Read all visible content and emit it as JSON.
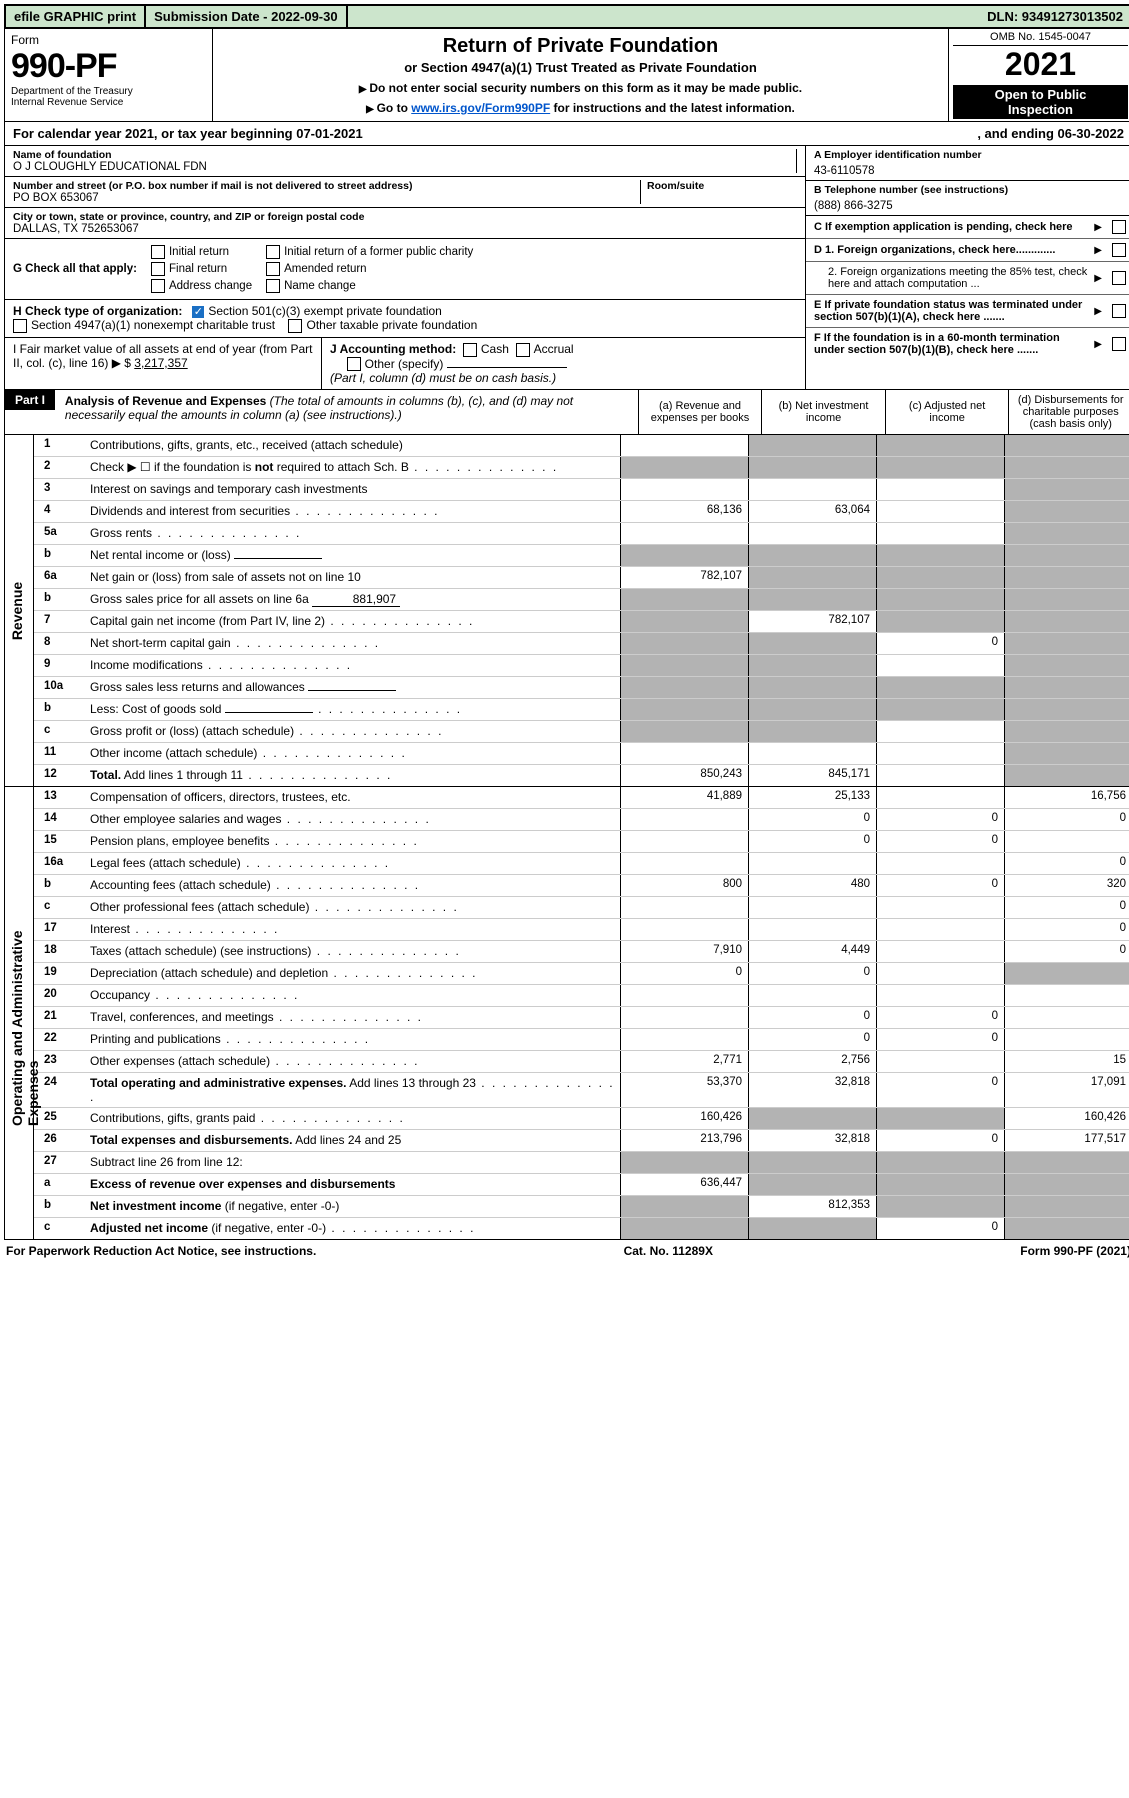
{
  "topbar": {
    "efile": "efile GRAPHIC print",
    "submission_label": "Submission Date - 2022-09-30",
    "dln": "DLN: 93491273013502"
  },
  "form_header": {
    "form_word": "Form",
    "form_number": "990-PF",
    "dept": "Department of the Treasury",
    "irs": "Internal Revenue Service",
    "title": "Return of Private Foundation",
    "subtitle": "or Section 4947(a)(1) Trust Treated as Private Foundation",
    "note1": "Do not enter social security numbers on this form as it may be made public.",
    "note2_pre": "Go to ",
    "note2_link": "www.irs.gov/Form990PF",
    "note2_post": " for instructions and the latest information.",
    "omb": "OMB No. 1545-0047",
    "year": "2021",
    "open1": "Open to Public",
    "open2": "Inspection"
  },
  "tax_year": {
    "left": "For calendar year 2021, or tax year beginning 07-01-2021",
    "right": ", and ending 06-30-2022"
  },
  "entity": {
    "name_label": "Name of foundation",
    "name": "O J CLOUGHLY EDUCATIONAL FDN",
    "addr_label": "Number and street (or P.O. box number if mail is not delivered to street address)",
    "addr": "PO BOX 653067",
    "room_label": "Room/suite",
    "city_label": "City or town, state or province, country, and ZIP or foreign postal code",
    "city": "DALLAS, TX  752653067",
    "ein_label": "A Employer identification number",
    "ein": "43-6110578",
    "phone_label": "B Telephone number (see instructions)",
    "phone": "(888) 866-3275",
    "c_label": "C If exemption application is pending, check here"
  },
  "check_G": {
    "label": "G Check all that apply:",
    "opts": [
      "Initial return",
      "Final return",
      "Address change",
      "Initial return of a former public charity",
      "Amended return",
      "Name change"
    ]
  },
  "check_H": {
    "label": "H Check type of organization:",
    "opt1": "Section 501(c)(3) exempt private foundation",
    "opt2": "Section 4947(a)(1) nonexempt charitable trust",
    "opt3": "Other taxable private foundation"
  },
  "check_I": {
    "label": "I Fair market value of all assets at end of year (from Part II, col. (c), line 16)",
    "amount": "3,217,357"
  },
  "check_J": {
    "label": "J Accounting method:",
    "cash": "Cash",
    "accrual": "Accrual",
    "other": "Other (specify)",
    "note": "(Part I, column (d) must be on cash basis.)"
  },
  "right_flags": {
    "d1": "D 1. Foreign organizations, check here.............",
    "d2": "2. Foreign organizations meeting the 85% test, check here and attach computation ...",
    "e": "E  If private foundation status was terminated under section 507(b)(1)(A), check here .......",
    "f": "F  If the foundation is in a 60-month termination under section 507(b)(1)(B), check here ......."
  },
  "part1": {
    "badge": "Part I",
    "title": "Analysis of Revenue and Expenses",
    "paren": " (The total of amounts in columns (b), (c), and (d) may not necessarily equal the amounts in column (a) (see instructions).)",
    "cols": {
      "a": "(a)  Revenue and expenses per books",
      "b": "(b)  Net investment income",
      "c": "(c)  Adjusted net income",
      "d": "(d)  Disbursements for charitable purposes (cash basis only)"
    }
  },
  "vlabels": {
    "rev": "Revenue",
    "exp": "Operating and Administrative Expenses"
  },
  "lines": [
    {
      "n": "1",
      "d": "Contributions, gifts, grants, etc., received (attach schedule)",
      "a": "",
      "b": "s",
      "c": "s",
      "x": "s"
    },
    {
      "n": "2",
      "d": "Check ▶ ☐ if the foundation is <b>not</b> required to attach Sch. B",
      "dot": true,
      "a": "s",
      "b": "s",
      "c": "s",
      "x": "s"
    },
    {
      "n": "3",
      "d": "Interest on savings and temporary cash investments",
      "a": "",
      "b": "",
      "c": "",
      "x": "s"
    },
    {
      "n": "4",
      "d": "Dividends and interest from securities",
      "dot": true,
      "a": "68,136",
      "b": "63,064",
      "c": "",
      "x": "s"
    },
    {
      "n": "5a",
      "d": "Gross rents",
      "dot": true,
      "a": "",
      "b": "",
      "c": "",
      "x": "s"
    },
    {
      "n": "b",
      "d": "Net rental income or (loss)",
      "inline": true,
      "a": "s",
      "b": "s",
      "c": "s",
      "x": "s"
    },
    {
      "n": "6a",
      "d": "Net gain or (loss) from sale of assets not on line 10",
      "a": "782,107",
      "b": "s",
      "c": "s",
      "x": "s"
    },
    {
      "n": "b",
      "d": "Gross sales price for all assets on line 6a",
      "inline_val": "881,907",
      "a": "s",
      "b": "s",
      "c": "s",
      "x": "s"
    },
    {
      "n": "7",
      "d": "Capital gain net income (from Part IV, line 2)",
      "dot": true,
      "a": "s",
      "b": "782,107",
      "c": "s",
      "x": "s"
    },
    {
      "n": "8",
      "d": "Net short-term capital gain",
      "dot": true,
      "a": "s",
      "b": "s",
      "c": "0",
      "x": "s"
    },
    {
      "n": "9",
      "d": "Income modifications",
      "dot": true,
      "a": "s",
      "b": "s",
      "c": "",
      "x": "s"
    },
    {
      "n": "10a",
      "d": "Gross sales less returns and allowances",
      "inline": true,
      "a": "s",
      "b": "s",
      "c": "s",
      "x": "s"
    },
    {
      "n": "b",
      "d": "Less: Cost of goods sold",
      "dot": true,
      "inline": true,
      "a": "s",
      "b": "s",
      "c": "s",
      "x": "s"
    },
    {
      "n": "c",
      "d": "Gross profit or (loss) (attach schedule)",
      "dot": true,
      "a": "s",
      "b": "s",
      "c": "",
      "x": "s"
    },
    {
      "n": "11",
      "d": "Other income (attach schedule)",
      "dot": true,
      "a": "",
      "b": "",
      "c": "",
      "x": "s"
    },
    {
      "n": "12",
      "d": "<b>Total.</b> Add lines 1 through 11",
      "dot": true,
      "a": "850,243",
      "b": "845,171",
      "c": "",
      "x": "s"
    }
  ],
  "exp_lines": [
    {
      "n": "13",
      "d": "Compensation of officers, directors, trustees, etc.",
      "a": "41,889",
      "b": "25,133",
      "c": "",
      "x": "16,756"
    },
    {
      "n": "14",
      "d": "Other employee salaries and wages",
      "dot": true,
      "a": "",
      "b": "0",
      "c": "0",
      "x": "0"
    },
    {
      "n": "15",
      "d": "Pension plans, employee benefits",
      "dot": true,
      "a": "",
      "b": "0",
      "c": "0",
      "x": ""
    },
    {
      "n": "16a",
      "d": "Legal fees (attach schedule)",
      "dot": true,
      "a": "",
      "b": "",
      "c": "",
      "x": "0"
    },
    {
      "n": "b",
      "d": "Accounting fees (attach schedule)",
      "dot": true,
      "a": "800",
      "b": "480",
      "c": "0",
      "x": "320"
    },
    {
      "n": "c",
      "d": "Other professional fees (attach schedule)",
      "dot": true,
      "a": "",
      "b": "",
      "c": "",
      "x": "0"
    },
    {
      "n": "17",
      "d": "Interest",
      "dot": true,
      "a": "",
      "b": "",
      "c": "",
      "x": "0"
    },
    {
      "n": "18",
      "d": "Taxes (attach schedule) (see instructions)",
      "dot": true,
      "a": "7,910",
      "b": "4,449",
      "c": "",
      "x": "0"
    },
    {
      "n": "19",
      "d": "Depreciation (attach schedule) and depletion",
      "dot": true,
      "a": "0",
      "b": "0",
      "c": "",
      "x": "s"
    },
    {
      "n": "20",
      "d": "Occupancy",
      "dot": true,
      "a": "",
      "b": "",
      "c": "",
      "x": ""
    },
    {
      "n": "21",
      "d": "Travel, conferences, and meetings",
      "dot": true,
      "a": "",
      "b": "0",
      "c": "0",
      "x": ""
    },
    {
      "n": "22",
      "d": "Printing and publications",
      "dot": true,
      "a": "",
      "b": "0",
      "c": "0",
      "x": ""
    },
    {
      "n": "23",
      "d": "Other expenses (attach schedule)",
      "dot": true,
      "a": "2,771",
      "b": "2,756",
      "c": "",
      "x": "15"
    },
    {
      "n": "24",
      "d": "<b>Total operating and administrative expenses.</b> Add lines 13 through 23",
      "dot": true,
      "a": "53,370",
      "b": "32,818",
      "c": "0",
      "x": "17,091"
    },
    {
      "n": "25",
      "d": "Contributions, gifts, grants paid",
      "dot": true,
      "a": "160,426",
      "b": "s",
      "c": "s",
      "x": "160,426"
    },
    {
      "n": "26",
      "d": "<b>Total expenses and disbursements.</b> Add lines 24 and 25",
      "a": "213,796",
      "b": "32,818",
      "c": "0",
      "x": "177,517"
    },
    {
      "n": "27",
      "d": "Subtract line 26 from line 12:",
      "a": "s",
      "b": "s",
      "c": "s",
      "x": "s"
    },
    {
      "n": "a",
      "d": "<b>Excess of revenue over expenses and disbursements</b>",
      "a": "636,447",
      "b": "s",
      "c": "s",
      "x": "s"
    },
    {
      "n": "b",
      "d": "<b>Net investment income</b> (if negative, enter -0-)",
      "a": "s",
      "b": "812,353",
      "c": "s",
      "x": "s"
    },
    {
      "n": "c",
      "d": "<b>Adjusted net income</b> (if negative, enter -0-)",
      "dot": true,
      "a": "s",
      "b": "s",
      "c": "0",
      "x": "s"
    }
  ],
  "footer": {
    "left": "For Paperwork Reduction Act Notice, see instructions.",
    "mid": "Cat. No. 11289X",
    "right": "Form 990-PF (2021)"
  }
}
